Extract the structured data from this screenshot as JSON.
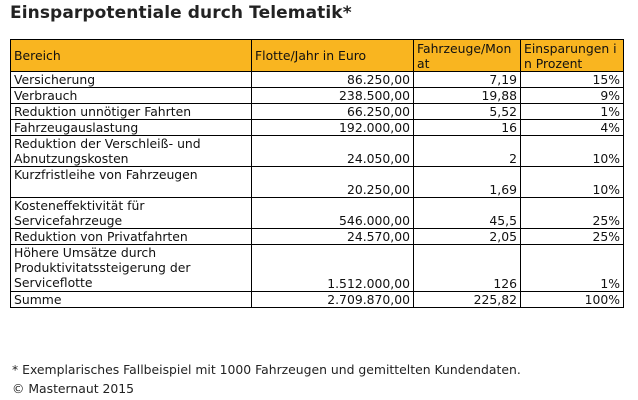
{
  "title": "Einsparpotentiale durch Telematik*",
  "table": {
    "headers": [
      "Bereich",
      "Flotte/Jahr in Euro",
      "Fahrzeuge/Monat",
      "Einsparungen in Prozent"
    ],
    "rows": [
      {
        "bereich": "Versicherung",
        "flotte": "86.250,00",
        "fahrzeuge": "7,19",
        "prozent": "15%",
        "lines": 1
      },
      {
        "bereich": "Verbrauch",
        "flotte": "238.500,00",
        "fahrzeuge": "19,88",
        "prozent": "9%",
        "lines": 1
      },
      {
        "bereich": "Reduktion unnötiger Fahrten",
        "flotte": "66.250,00",
        "fahrzeuge": "5,52",
        "prozent": "1%",
        "lines": 1
      },
      {
        "bereich": "Fahrzeugauslastung",
        "flotte": "192.000,00",
        "fahrzeuge": "16",
        "prozent": "4%",
        "lines": 1
      },
      {
        "bereich": "Reduktion der Verschleiß- und Abnutzungskosten",
        "flotte": "24.050,00",
        "fahrzeuge": "2",
        "prozent": "10%",
        "lines": 2
      },
      {
        "bereich": "Kurzfristleihe von Fahrzeugen",
        "flotte": "20.250,00",
        "fahrzeuge": "1,69",
        "prozent": "10%",
        "lines": 2
      },
      {
        "bereich": "Kosteneffektivität für Servicefahrzeuge",
        "flotte": "546.000,00",
        "fahrzeuge": "45,5",
        "prozent": "25%",
        "lines": 2
      },
      {
        "bereich": "Reduktion von Privatfahrten",
        "flotte": "24.570,00",
        "fahrzeuge": "2,05",
        "prozent": "25%",
        "lines": 1
      },
      {
        "bereich": "Höhere Umsätze durch Produktivitatssteigerung der Serviceflotte",
        "flotte": "1.512.000,00",
        "fahrzeuge": "126",
        "prozent": "1%",
        "lines": 3
      },
      {
        "bereich": "Summe",
        "flotte": "2.709.870,00",
        "fahrzeuge": "225,82",
        "prozent": "100%",
        "lines": 1
      }
    ]
  },
  "footnote": "* Exemplarisches Fallbeispiel mit 1000 Fahrzeugen und gemittelten Kundendaten.",
  "copyright": "© Masternaut 2015",
  "colors": {
    "header_background": "#f9b520",
    "border": "#000000"
  }
}
